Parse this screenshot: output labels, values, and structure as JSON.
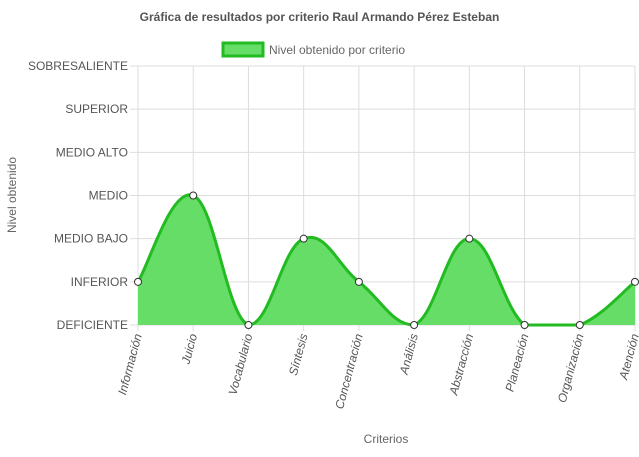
{
  "chart_data": {
    "type": "area",
    "title": "Gráfica de resultados por criterio Raul Armando Pérez Esteban",
    "xlabel": "Criterios",
    "ylabel": "Nivel obtenido",
    "y_levels": [
      "DEFICIENTE",
      "INFERIOR",
      "MEDIO BAJO",
      "MEDIO",
      "MEDIO ALTO",
      "SUPERIOR",
      "SOBRESALIENTE"
    ],
    "ylim": [
      0,
      6
    ],
    "categories": [
      "Información",
      "Juicio",
      "Vocabulario",
      "Síntesis",
      "Concentración",
      "Análisis",
      "Abstracción",
      "Planeación",
      "Organización",
      "Atención"
    ],
    "series": [
      {
        "name": "Nivel obtenido por criterio",
        "values": [
          1,
          3,
          0,
          2,
          1,
          0,
          2,
          0,
          0,
          1
        ]
      }
    ],
    "grid": true,
    "legend_position": "top-center",
    "colors": {
      "fill": "#66dd66",
      "stroke": "#22bb22",
      "grid": "#dddddd",
      "text": "#555555"
    }
  }
}
